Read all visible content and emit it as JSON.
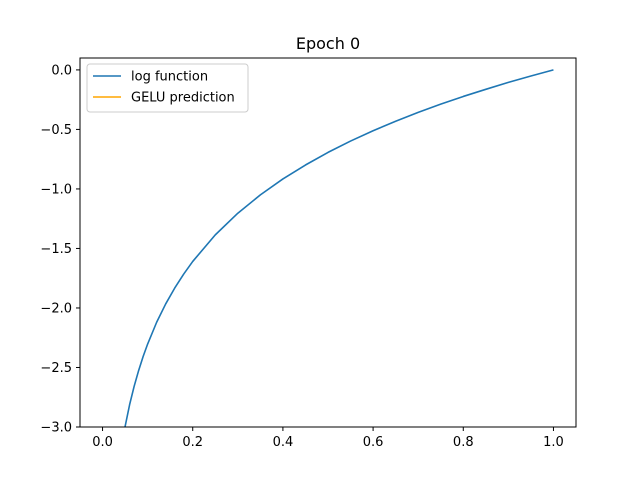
{
  "chart_data": {
    "type": "line",
    "title": "Epoch 0",
    "xlabel": "",
    "ylabel": "",
    "xlim": [
      -0.05,
      1.05
    ],
    "ylim": [
      -3.0,
      0.1
    ],
    "xticks": [
      0.0,
      0.2,
      0.4,
      0.6,
      0.8,
      1.0
    ],
    "xtick_labels": [
      "0.0",
      "0.2",
      "0.4",
      "0.6",
      "0.8",
      "1.0"
    ],
    "yticks": [
      0.0,
      -0.5,
      -1.0,
      -1.5,
      -2.0,
      -2.5,
      -3.0
    ],
    "ytick_labels": [
      "0.0",
      "−0.5",
      "−1.0",
      "−1.5",
      "−2.0",
      "−2.5",
      "−3.0"
    ],
    "grid": false,
    "legend_position": "upper-left",
    "series": [
      {
        "name": "log function",
        "color": "#1f77b4",
        "x": [
          0.0498,
          0.06,
          0.07,
          0.08,
          0.09,
          0.1,
          0.12,
          0.14,
          0.16,
          0.18,
          0.2,
          0.25,
          0.3,
          0.35,
          0.4,
          0.45,
          0.5,
          0.55,
          0.6,
          0.65,
          0.7,
          0.75,
          0.8,
          0.85,
          0.9,
          0.95,
          1.0
        ],
        "y": [
          -3.0,
          -2.813,
          -2.659,
          -2.526,
          -2.408,
          -2.303,
          -2.12,
          -1.966,
          -1.833,
          -1.715,
          -1.609,
          -1.386,
          -1.204,
          -1.05,
          -0.916,
          -0.799,
          -0.693,
          -0.598,
          -0.511,
          -0.431,
          -0.357,
          -0.288,
          -0.223,
          -0.163,
          -0.105,
          -0.051,
          0.0
        ]
      },
      {
        "name": "GELU prediction",
        "color": "#ffa500",
        "x": [],
        "y": []
      }
    ]
  }
}
